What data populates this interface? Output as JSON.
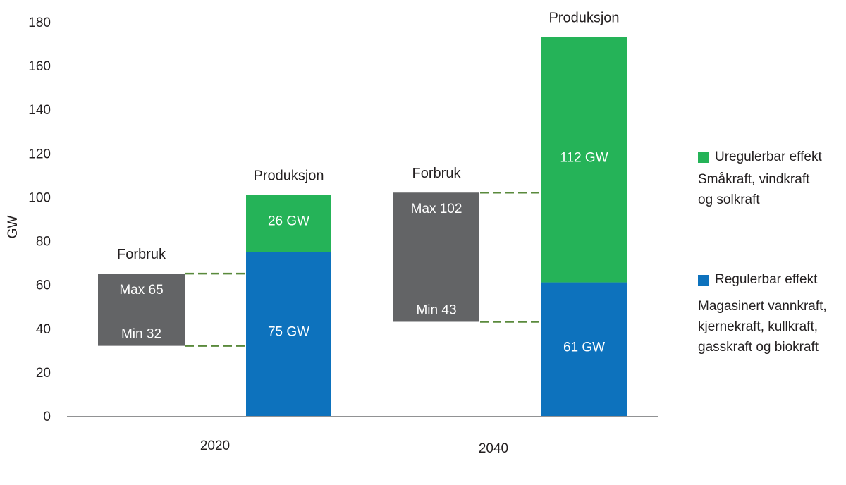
{
  "chart_data": {
    "type": "bar",
    "ylabel": "GW",
    "ylim": [
      0,
      180
    ],
    "yticks": [
      0,
      20,
      40,
      60,
      80,
      100,
      120,
      140,
      160,
      180
    ],
    "groups": [
      {
        "category": "2020",
        "consumption": {
          "label": "Forbruk",
          "max": 65,
          "min": 32,
          "max_text": "Max 65",
          "min_text": "Min  32"
        },
        "production": {
          "label": "Produksjon",
          "segments": [
            {
              "series": "Regulerbar effekt",
              "value": 75,
              "text": "75 GW"
            },
            {
              "series": "Uregulerbar effekt",
              "value": 26,
              "text": "26 GW"
            }
          ]
        }
      },
      {
        "category": "2040",
        "consumption": {
          "label": "Forbruk",
          "max": 102,
          "min": 43,
          "max_text": "Max 102",
          "min_text": "Min  43"
        },
        "production": {
          "label": "Produksjon",
          "segments": [
            {
              "series": "Regulerbar effekt",
              "value": 61,
              "text": "61 GW"
            },
            {
              "series": "Uregulerbar effekt",
              "value": 112,
              "text": "112 GW"
            }
          ]
        }
      }
    ],
    "legend": [
      {
        "name": "Uregulerbar effekt",
        "color": "#25b358",
        "description": [
          "Småkraft, vindkraft",
          "og solkraft"
        ]
      },
      {
        "name": "Regulerbar effekt",
        "color": "#0d72bd",
        "description": [
          "Magasinert vannkraft,",
          "kjernekraft, kullkraft,",
          "gasskraft og biokraft"
        ]
      }
    ],
    "colors": {
      "consumption": "#636466",
      "regulerbar": "#0d72bd",
      "uregulerbar": "#25b358",
      "connector": "#5a8a3c",
      "axis": "#6d6e70"
    }
  }
}
